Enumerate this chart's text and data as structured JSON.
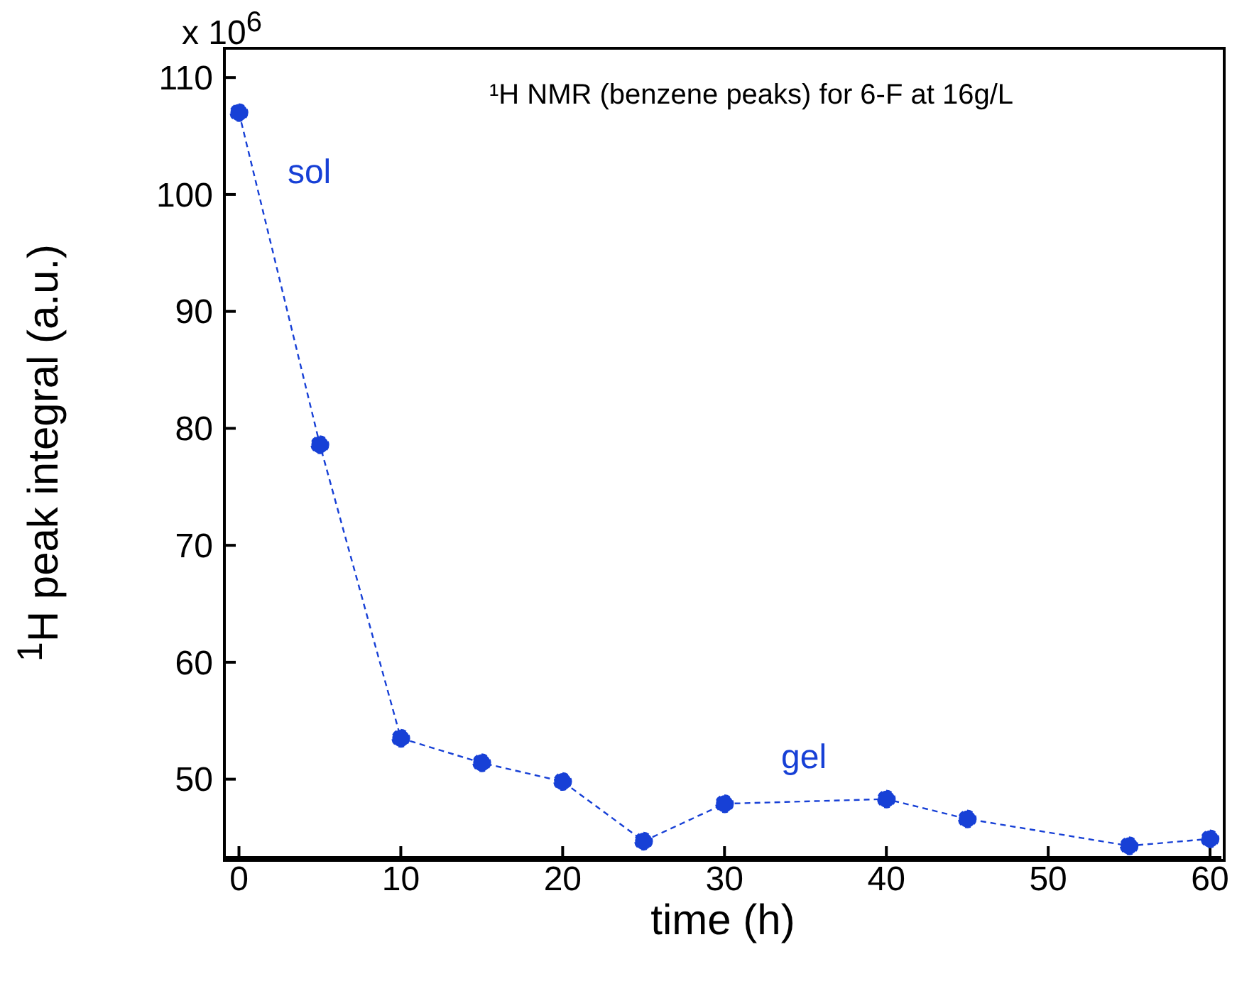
{
  "chart_data": {
    "type": "line",
    "title": "¹H NMR (benzene peaks) for 6-F at 16g/L",
    "xlabel": "time (h)",
    "ylabel": "$^{1}$H peak integral (a.u.)",
    "x": [
      0,
      5,
      10,
      15,
      20,
      25,
      30,
      40,
      45,
      55,
      60
    ],
    "series": [
      {
        "color": "#1740d6",
        "values": [
          107.0,
          78.6,
          53.5,
          51.4,
          49.8,
          44.7,
          47.9,
          48.3,
          46.6,
          44.3,
          44.9
        ]
      }
    ],
    "xlim": [
      -0.9,
      60.7
    ],
    "xticks": [
      0,
      10,
      20,
      30,
      40,
      50,
      60
    ],
    "ylim": [
      43.3,
      112.5
    ],
    "yticks": [
      50,
      60,
      70,
      80,
      90,
      100,
      110
    ],
    "annotations": [
      "x 10$^{6}$",
      "sol",
      "gel"
    ],
    "marker": "circle",
    "line_style": "dashed",
    "grid": false
  }
}
